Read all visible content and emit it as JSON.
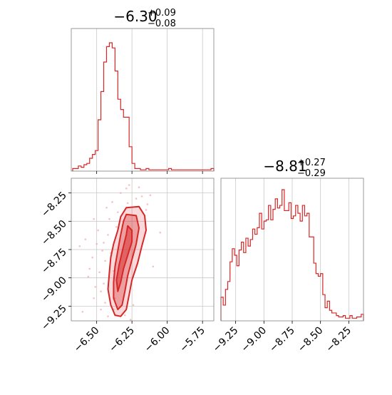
{
  "chart_data": [
    {
      "type": "histogram",
      "panel": "top-left",
      "title_main": "−6.30",
      "title_sup": "+0.09",
      "title_sub": "−0.08",
      "xlim": [
        -6.68,
        -5.67
      ],
      "grid": true,
      "x": [
        -6.66,
        -6.64,
        -6.62,
        -6.6,
        -6.58,
        -6.56,
        -6.54,
        -6.52,
        -6.5,
        -6.48,
        -6.46,
        -6.44,
        -6.42,
        -6.4,
        -6.38,
        -6.36,
        -6.34,
        -6.32,
        -6.3,
        -6.28,
        -6.26,
        -6.24,
        -6.22,
        -6.2,
        -6.18,
        -6.16,
        -6.14,
        -6.12,
        -6.1,
        -6.08,
        -6.06,
        -6.04,
        -6.02,
        -6.0,
        -5.98,
        -5.96,
        -5.94,
        -5.92,
        -5.9,
        -5.88,
        -5.86,
        -5.84,
        -5.82,
        -5.8,
        -5.78,
        -5.76,
        -5.74,
        -5.72,
        -5.7,
        -5.68
      ],
      "values": [
        0.02,
        0.02,
        0.04,
        0.03,
        0.05,
        0.06,
        0.1,
        0.13,
        0.16,
        0.4,
        0.62,
        0.85,
        0.97,
        1.0,
        0.96,
        0.78,
        0.56,
        0.48,
        0.42,
        0.42,
        0.19,
        0.06,
        0.02,
        0.02,
        0.01,
        0.01,
        0.02,
        0.01,
        0.01,
        0.01,
        0.01,
        0.01,
        0.01,
        0.01,
        0.02,
        0.01,
        0.01,
        0.01,
        0.01,
        0.01,
        0.01,
        0.01,
        0.01,
        0.01,
        0.01,
        0.01,
        0.01,
        0.01,
        0.01,
        0.02
      ]
    },
    {
      "type": "histogram",
      "panel": "bottom-right",
      "title_main": "−8.81",
      "title_sup": "+0.27",
      "title_sub": "−0.29",
      "xlim": [
        -9.38,
        -8.12
      ],
      "xticks": [
        "−9.25",
        "−9.00",
        "−8.75",
        "−8.50",
        "−8.25"
      ],
      "grid": true,
      "x": [
        -9.37,
        -9.35,
        -9.33,
        -9.31,
        -9.29,
        -9.27,
        -9.25,
        -9.23,
        -9.21,
        -9.19,
        -9.17,
        -9.15,
        -9.13,
        -9.11,
        -9.09,
        -9.07,
        -9.05,
        -9.03,
        -9.01,
        -8.99,
        -8.97,
        -8.95,
        -8.93,
        -8.91,
        -8.89,
        -8.87,
        -8.85,
        -8.83,
        -8.81,
        -8.79,
        -8.77,
        -8.75,
        -8.73,
        -8.71,
        -8.69,
        -8.67,
        -8.65,
        -8.63,
        -8.61,
        -8.59,
        -8.57,
        -8.55,
        -8.53,
        -8.51,
        -8.49,
        -8.47,
        -8.45,
        -8.43,
        -8.41,
        -8.39,
        -8.37,
        -8.35,
        -8.33,
        -8.31,
        -8.29,
        -8.27,
        -8.25,
        -8.23,
        -8.21,
        -8.19,
        -8.17,
        -8.15,
        -8.13
      ],
      "values": [
        0.18,
        0.12,
        0.24,
        0.3,
        0.45,
        0.55,
        0.5,
        0.42,
        0.54,
        0.6,
        0.52,
        0.63,
        0.57,
        0.62,
        0.7,
        0.66,
        0.71,
        0.82,
        0.7,
        0.76,
        0.77,
        0.88,
        0.77,
        0.85,
        0.93,
        0.86,
        0.88,
        1.0,
        0.84,
        0.84,
        0.9,
        0.78,
        0.8,
        0.88,
        0.82,
        0.76,
        0.88,
        0.8,
        0.82,
        0.64,
        0.64,
        0.44,
        0.36,
        0.34,
        0.36,
        0.2,
        0.1,
        0.15,
        0.08,
        0.06,
        0.06,
        0.04,
        0.03,
        0.03,
        0.04,
        0.02,
        0.02,
        0.04,
        0.02,
        0.02,
        0.03,
        0.03,
        0.05
      ]
    },
    {
      "type": "contour",
      "panel": "bottom-left",
      "xlim": [
        -6.68,
        -5.67
      ],
      "ylim": [
        -9.38,
        -8.12
      ],
      "xticks": [
        "−6.50",
        "−6.25",
        "−6.00",
        "−5.75"
      ],
      "yticks": [
        "−8.25",
        "−8.50",
        "−8.75",
        "−9.00",
        "−9.25"
      ],
      "grid": true,
      "samples": [
        [
          -6.4,
          -8.78
        ],
        [
          -6.44,
          -8.85
        ],
        [
          -6.48,
          -8.95
        ],
        [
          -6.45,
          -9.05
        ],
        [
          -6.5,
          -8.7
        ],
        [
          -6.36,
          -8.55
        ],
        [
          -6.42,
          -8.62
        ],
        [
          -6.47,
          -9.12
        ],
        [
          -6.38,
          -9.28
        ],
        [
          -6.28,
          -8.34
        ],
        [
          -6.22,
          -8.3
        ],
        [
          -6.18,
          -8.28
        ],
        [
          -6.52,
          -8.48
        ],
        [
          -6.55,
          -8.92
        ],
        [
          -6.58,
          -8.66
        ],
        [
          -6.52,
          -9.18
        ],
        [
          -6.44,
          -9.22
        ],
        [
          -6.3,
          -9.33
        ],
        [
          -6.26,
          -9.37
        ],
        [
          -6.15,
          -8.4
        ],
        [
          -6.35,
          -8.42
        ],
        [
          -6.41,
          -8.48
        ],
        [
          -6.46,
          -8.76
        ],
        [
          -6.53,
          -8.82
        ],
        [
          -6.37,
          -9.18
        ],
        [
          -6.49,
          -8.58
        ],
        [
          -6.43,
          -8.38
        ],
        [
          -6.33,
          -8.25
        ],
        [
          -6.2,
          -8.2
        ],
        [
          -6.12,
          -8.27
        ],
        [
          -6.56,
          -8.99
        ],
        [
          -6.62,
          -8.72
        ],
        [
          -6.47,
          -9.28
        ],
        [
          -6.24,
          -9.24
        ],
        [
          -6.1,
          -8.9
        ],
        [
          -6.14,
          -8.35
        ],
        [
          -6.38,
          -8.94
        ],
        [
          -6.51,
          -9.08
        ],
        [
          -6.45,
          -8.69
        ],
        [
          -6.39,
          -8.33
        ],
        [
          -6.29,
          -8.21
        ],
        [
          -6.6,
          -9.3
        ],
        [
          -6.05,
          -8.6
        ],
        [
          -6.27,
          -8.18
        ],
        [
          -6.42,
          -9.34
        ]
      ],
      "contours": [
        [
          [
            -6.29,
            -8.38
          ],
          [
            -6.2,
            -8.37
          ],
          [
            -6.16,
            -8.45
          ],
          [
            -6.15,
            -8.58
          ],
          [
            -6.18,
            -8.72
          ],
          [
            -6.21,
            -8.87
          ],
          [
            -6.25,
            -9.02
          ],
          [
            -6.27,
            -9.15
          ],
          [
            -6.29,
            -9.28
          ],
          [
            -6.33,
            -9.34
          ],
          [
            -6.37,
            -9.33
          ],
          [
            -6.4,
            -9.24
          ],
          [
            -6.42,
            -9.1
          ],
          [
            -6.41,
            -8.95
          ],
          [
            -6.4,
            -8.82
          ],
          [
            -6.38,
            -8.7
          ],
          [
            -6.35,
            -8.58
          ],
          [
            -6.33,
            -8.46
          ]
        ],
        [
          [
            -6.29,
            -8.44
          ],
          [
            -6.22,
            -8.45
          ],
          [
            -6.2,
            -8.56
          ],
          [
            -6.22,
            -8.7
          ],
          [
            -6.25,
            -8.84
          ],
          [
            -6.28,
            -8.98
          ],
          [
            -6.3,
            -9.12
          ],
          [
            -6.32,
            -9.24
          ],
          [
            -6.35,
            -9.28
          ],
          [
            -6.38,
            -9.18
          ],
          [
            -6.38,
            -9.04
          ],
          [
            -6.37,
            -8.9
          ],
          [
            -6.35,
            -8.76
          ],
          [
            -6.33,
            -8.62
          ],
          [
            -6.31,
            -8.5
          ]
        ],
        [
          [
            -6.28,
            -8.54
          ],
          [
            -6.25,
            -8.58
          ],
          [
            -6.25,
            -8.68
          ],
          [
            -6.28,
            -8.8
          ],
          [
            -6.31,
            -8.92
          ],
          [
            -6.33,
            -9.04
          ],
          [
            -6.35,
            -9.12
          ],
          [
            -6.36,
            -9.02
          ],
          [
            -6.34,
            -8.88
          ],
          [
            -6.31,
            -8.72
          ],
          [
            -6.29,
            -8.62
          ]
        ]
      ]
    }
  ]
}
